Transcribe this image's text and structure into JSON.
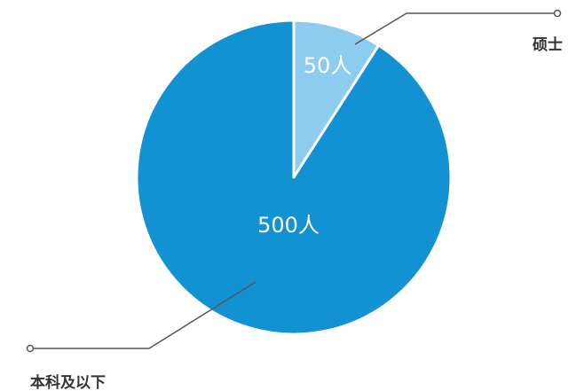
{
  "chart_data": {
    "type": "pie",
    "categories": [
      "硕士",
      "本科及以下"
    ],
    "values": [
      50,
      500
    ],
    "value_labels": [
      "50人",
      "500人"
    ],
    "colors": [
      "#8dcbef",
      "#1291d3"
    ],
    "legend": "leader-lines"
  }
}
